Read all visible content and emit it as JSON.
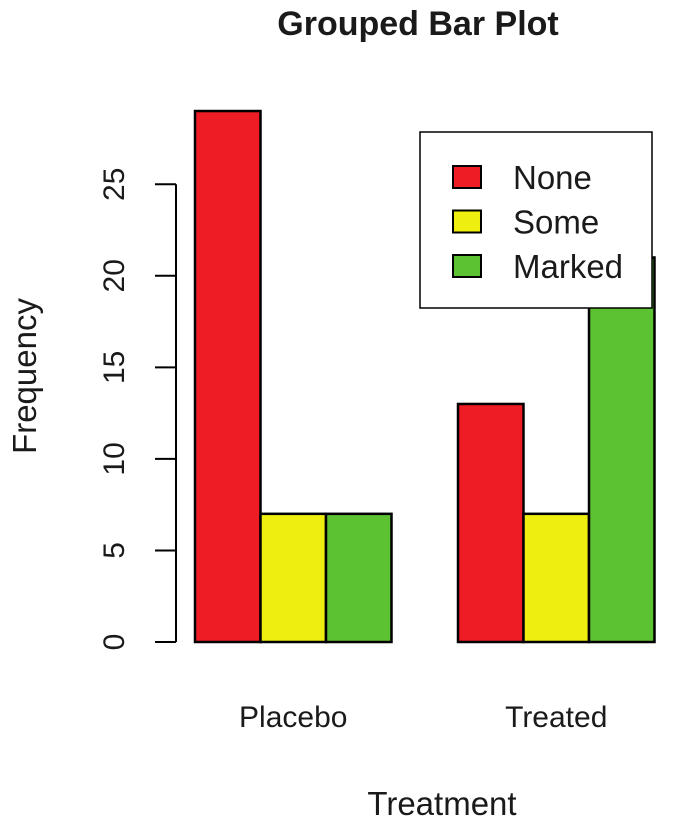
{
  "chart_data": {
    "type": "bar",
    "title": "Grouped Bar Plot",
    "xlabel": "Treatment",
    "ylabel": "Frequency",
    "categories": [
      "Placebo",
      "Treated"
    ],
    "series": [
      {
        "name": "None",
        "values": [
          29,
          13
        ],
        "color": "#ee1c25"
      },
      {
        "name": "Some",
        "values": [
          7,
          7
        ],
        "color": "#eeee11"
      },
      {
        "name": "Marked",
        "values": [
          7,
          21
        ],
        "color": "#5dc232"
      }
    ],
    "ylim": [
      0,
      29
    ],
    "yticks": [
      0,
      5,
      10,
      15,
      20,
      25
    ],
    "grid": false,
    "legend_position": "top-right"
  }
}
